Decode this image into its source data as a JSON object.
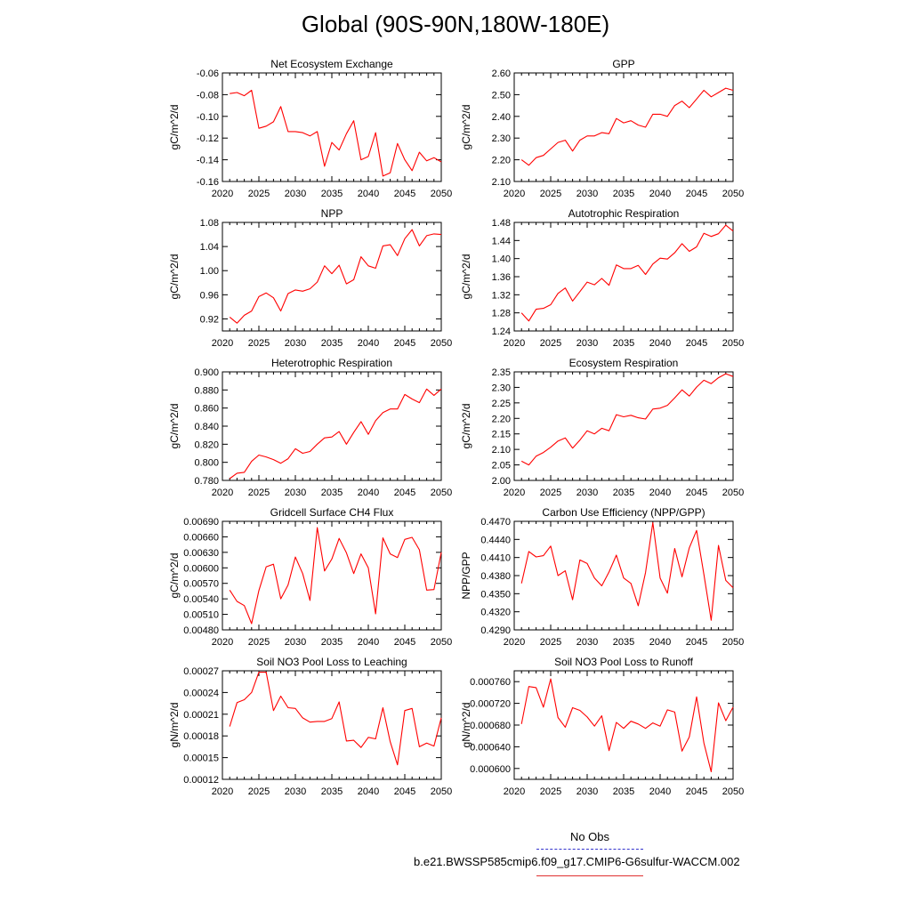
{
  "title": "Global (90S-90N,180W-180E)",
  "colors": {
    "series": "#ff0000",
    "axis": "#000000",
    "obs": "#3333cc"
  },
  "legend": {
    "obs_label": "No Obs",
    "model_label": "b.e21.BWSSP585cmip6.f09_g17.CMIP6-G6sulfur-WACCM.002"
  },
  "chart_data": [
    {
      "type": "line",
      "title": "Net Ecosystem Exchange",
      "ylabel": "gC/m^2/d",
      "xlabel": "",
      "xlim": [
        2020,
        2050
      ],
      "xticks": [
        "2020",
        "2025",
        "2030",
        "2035",
        "2040",
        "2045",
        "2050"
      ],
      "ylim": [
        -0.16,
        -0.06
      ],
      "yticks": [
        "-0.16",
        "-0.14",
        "-0.12",
        "-0.10",
        "-0.08",
        "-0.06"
      ],
      "x": [
        2021,
        2022,
        2023,
        2024,
        2025,
        2026,
        2027,
        2028,
        2029,
        2030,
        2031,
        2032,
        2033,
        2034,
        2035,
        2036,
        2037,
        2038,
        2039,
        2040,
        2041,
        2042,
        2043,
        2044,
        2045,
        2046,
        2047,
        2048,
        2049,
        2050
      ],
      "series": [
        {
          "values": [
            -0.079,
            -0.078,
            -0.081,
            -0.076,
            -0.111,
            -0.109,
            -0.105,
            -0.091,
            -0.114,
            -0.114,
            -0.115,
            -0.118,
            -0.114,
            -0.146,
            -0.124,
            -0.131,
            -0.116,
            -0.104,
            -0.14,
            -0.137,
            -0.115,
            -0.155,
            -0.152,
            -0.125,
            -0.14,
            -0.15,
            -0.133,
            -0.141,
            -0.138,
            -0.142
          ]
        }
      ]
    },
    {
      "type": "line",
      "title": "GPP",
      "ylabel": "gC/m^2/d",
      "xlabel": "",
      "xlim": [
        2020,
        2050
      ],
      "xticks": [
        "2020",
        "2025",
        "2030",
        "2035",
        "2040",
        "2045",
        "2050"
      ],
      "ylim": [
        2.1,
        2.6
      ],
      "yticks": [
        "2.10",
        "2.20",
        "2.30",
        "2.40",
        "2.50",
        "2.60"
      ],
      "x": [
        2021,
        2022,
        2023,
        2024,
        2025,
        2026,
        2027,
        2028,
        2029,
        2030,
        2031,
        2032,
        2033,
        2034,
        2035,
        2036,
        2037,
        2038,
        2039,
        2040,
        2041,
        2042,
        2043,
        2044,
        2045,
        2046,
        2047,
        2048,
        2049,
        2050
      ],
      "series": [
        {
          "values": [
            2.2,
            2.175,
            2.21,
            2.22,
            2.25,
            2.28,
            2.29,
            2.24,
            2.29,
            2.31,
            2.31,
            2.325,
            2.32,
            2.39,
            2.37,
            2.38,
            2.36,
            2.35,
            2.41,
            2.41,
            2.4,
            2.45,
            2.47,
            2.44,
            2.48,
            2.52,
            2.49,
            2.51,
            2.53,
            2.52
          ]
        }
      ]
    },
    {
      "type": "line",
      "title": "NPP",
      "ylabel": "gC/m^2/d",
      "xlabel": "",
      "xlim": [
        2020,
        2050
      ],
      "xticks": [
        "2020",
        "2025",
        "2030",
        "2035",
        "2040",
        "2045",
        "2050"
      ],
      "ylim": [
        0.9,
        1.08
      ],
      "yticks": [
        "0.92",
        "0.96",
        "1.00",
        "1.04",
        "1.08"
      ],
      "x": [
        2021,
        2022,
        2023,
        2024,
        2025,
        2026,
        2027,
        2028,
        2029,
        2030,
        2031,
        2032,
        2033,
        2034,
        2035,
        2036,
        2037,
        2038,
        2039,
        2040,
        2041,
        2042,
        2043,
        2044,
        2045,
        2046,
        2047,
        2048,
        2049,
        2050
      ],
      "series": [
        {
          "values": [
            0.923,
            0.913,
            0.926,
            0.933,
            0.957,
            0.963,
            0.955,
            0.933,
            0.962,
            0.968,
            0.966,
            0.97,
            0.981,
            1.008,
            0.995,
            1.009,
            0.978,
            0.985,
            1.023,
            1.008,
            1.004,
            1.041,
            1.043,
            1.025,
            1.053,
            1.068,
            1.041,
            1.058,
            1.061,
            1.06
          ]
        }
      ]
    },
    {
      "type": "line",
      "title": "Autotrophic Respiration",
      "ylabel": "gC/m^2/d",
      "xlabel": "",
      "xlim": [
        2020,
        2050
      ],
      "xticks": [
        "2020",
        "2025",
        "2030",
        "2035",
        "2040",
        "2045",
        "2050"
      ],
      "ylim": [
        1.24,
        1.48
      ],
      "yticks": [
        "1.24",
        "1.28",
        "1.32",
        "1.36",
        "1.40",
        "1.44",
        "1.48"
      ],
      "x": [
        2021,
        2022,
        2023,
        2024,
        2025,
        2026,
        2027,
        2028,
        2029,
        2030,
        2031,
        2032,
        2033,
        2034,
        2035,
        2036,
        2037,
        2038,
        2039,
        2040,
        2041,
        2042,
        2043,
        2044,
        2045,
        2046,
        2047,
        2048,
        2049,
        2050
      ],
      "series": [
        {
          "values": [
            1.28,
            1.262,
            1.288,
            1.29,
            1.298,
            1.323,
            1.335,
            1.306,
            1.327,
            1.348,
            1.342,
            1.356,
            1.341,
            1.386,
            1.378,
            1.378,
            1.385,
            1.365,
            1.388,
            1.401,
            1.399,
            1.413,
            1.433,
            1.416,
            1.426,
            1.456,
            1.449,
            1.455,
            1.474,
            1.461
          ]
        }
      ]
    },
    {
      "type": "line",
      "title": "Heterotrophic Respiration",
      "ylabel": "gC/m^2/d",
      "xlabel": "",
      "xlim": [
        2020,
        2050
      ],
      "xticks": [
        "2020",
        "2025",
        "2030",
        "2035",
        "2040",
        "2045",
        "2050"
      ],
      "ylim": [
        0.78,
        0.9
      ],
      "yticks": [
        "0.780",
        "0.800",
        "0.820",
        "0.840",
        "0.860",
        "0.880",
        "0.900"
      ],
      "x": [
        2021,
        2022,
        2023,
        2024,
        2025,
        2026,
        2027,
        2028,
        2029,
        2030,
        2031,
        2032,
        2033,
        2034,
        2035,
        2036,
        2037,
        2038,
        2039,
        2040,
        2041,
        2042,
        2043,
        2044,
        2045,
        2046,
        2047,
        2048,
        2049,
        2050
      ],
      "series": [
        {
          "values": [
            0.782,
            0.788,
            0.789,
            0.801,
            0.808,
            0.806,
            0.803,
            0.799,
            0.804,
            0.815,
            0.81,
            0.812,
            0.82,
            0.827,
            0.828,
            0.834,
            0.82,
            0.833,
            0.845,
            0.831,
            0.846,
            0.855,
            0.859,
            0.859,
            0.875,
            0.87,
            0.866,
            0.881,
            0.874,
            0.881
          ]
        }
      ]
    },
    {
      "type": "line",
      "title": "Ecosystem Respiration",
      "ylabel": "gC/m^2/d",
      "xlabel": "",
      "xlim": [
        2020,
        2050
      ],
      "xticks": [
        "2020",
        "2025",
        "2030",
        "2035",
        "2040",
        "2045",
        "2050"
      ],
      "ylim": [
        2.0,
        2.35
      ],
      "yticks": [
        "2.00",
        "2.05",
        "2.10",
        "2.15",
        "2.20",
        "2.25",
        "2.30",
        "2.35"
      ],
      "x": [
        2021,
        2022,
        2023,
        2024,
        2025,
        2026,
        2027,
        2028,
        2029,
        2030,
        2031,
        2032,
        2033,
        2034,
        2035,
        2036,
        2037,
        2038,
        2039,
        2040,
        2041,
        2042,
        2043,
        2044,
        2045,
        2046,
        2047,
        2048,
        2049,
        2050
      ],
      "series": [
        {
          "values": [
            2.062,
            2.05,
            2.078,
            2.09,
            2.107,
            2.127,
            2.137,
            2.104,
            2.13,
            2.16,
            2.15,
            2.168,
            2.16,
            2.212,
            2.205,
            2.21,
            2.202,
            2.198,
            2.23,
            2.233,
            2.242,
            2.266,
            2.292,
            2.272,
            2.301,
            2.323,
            2.312,
            2.331,
            2.344,
            2.335
          ]
        }
      ]
    },
    {
      "type": "line",
      "title": "Gridcell Surface CH4 Flux",
      "ylabel": "gC/m^2/d",
      "xlabel": "",
      "xlim": [
        2020,
        2050
      ],
      "xticks": [
        "2020",
        "2025",
        "2030",
        "2035",
        "2040",
        "2045",
        "2050"
      ],
      "ylim": [
        0.0048,
        0.0069
      ],
      "yticks": [
        "0.00480",
        "0.00510",
        "0.00540",
        "0.00570",
        "0.00600",
        "0.00630",
        "0.00660",
        "0.00690"
      ],
      "x": [
        2021,
        2022,
        2023,
        2024,
        2025,
        2026,
        2027,
        2028,
        2029,
        2030,
        2031,
        2032,
        2033,
        2034,
        2035,
        2036,
        2037,
        2038,
        2039,
        2040,
        2041,
        2042,
        2043,
        2044,
        2045,
        2046,
        2047,
        2048,
        2049,
        2050
      ],
      "series": [
        {
          "values": [
            0.00557,
            0.00535,
            0.00527,
            0.00492,
            0.00556,
            0.00602,
            0.00607,
            0.0054,
            0.00567,
            0.00621,
            0.00589,
            0.00537,
            0.00678,
            0.00594,
            0.00617,
            0.00657,
            0.00629,
            0.00589,
            0.00627,
            0.006,
            0.00511,
            0.00658,
            0.00627,
            0.0062,
            0.00655,
            0.00659,
            0.00635,
            0.00557,
            0.00558,
            0.0063
          ]
        }
      ]
    },
    {
      "type": "line",
      "title": "Carbon Use Efficiency (NPP/GPP)",
      "ylabel": "NPP/GPP",
      "xlabel": "",
      "xlim": [
        2020,
        2050
      ],
      "xticks": [
        "2020",
        "2025",
        "2030",
        "2035",
        "2040",
        "2045",
        "2050"
      ],
      "ylim": [
        0.429,
        0.447
      ],
      "yticks": [
        "0.4290",
        "0.4320",
        "0.4350",
        "0.4380",
        "0.4410",
        "0.4440",
        "0.4470"
      ],
      "x": [
        2021,
        2022,
        2023,
        2024,
        2025,
        2026,
        2027,
        2028,
        2029,
        2030,
        2031,
        2032,
        2033,
        2034,
        2035,
        2036,
        2037,
        2038,
        2039,
        2040,
        2041,
        2042,
        2043,
        2044,
        2045,
        2046,
        2047,
        2048,
        2049,
        2050
      ],
      "series": [
        {
          "values": [
            0.4367,
            0.442,
            0.4411,
            0.4413,
            0.4429,
            0.438,
            0.4388,
            0.434,
            0.4406,
            0.44,
            0.4376,
            0.4363,
            0.4386,
            0.4414,
            0.4376,
            0.4367,
            0.433,
            0.4385,
            0.4468,
            0.4376,
            0.4351,
            0.4425,
            0.4378,
            0.4426,
            0.4455,
            0.4382,
            0.4306,
            0.443,
            0.4372,
            0.436
          ]
        }
      ]
    },
    {
      "type": "line",
      "title": "Soil NO3 Pool Loss to Leaching",
      "ylabel": "gN/m^2/d",
      "xlabel": "",
      "xlim": [
        2020,
        2050
      ],
      "xticks": [
        "2020",
        "2025",
        "2030",
        "2035",
        "2040",
        "2045",
        "2050"
      ],
      "ylim": [
        0.00012,
        0.00027
      ],
      "yticks": [
        "0.00012",
        "0.00015",
        "0.00018",
        "0.00021",
        "0.00024",
        "0.00027"
      ],
      "x": [
        2021,
        2022,
        2023,
        2024,
        2025,
        2026,
        2027,
        2028,
        2029,
        2030,
        2031,
        2032,
        2033,
        2034,
        2035,
        2036,
        2037,
        2038,
        2039,
        2040,
        2041,
        2042,
        2043,
        2044,
        2045,
        2046,
        2047,
        2048,
        2049,
        2050
      ],
      "series": [
        {
          "values": [
            0.000193,
            0.000226,
            0.00023,
            0.00024,
            0.000268,
            0.000268,
            0.000215,
            0.000235,
            0.000219,
            0.000218,
            0.000205,
            0.000199,
            0.0002,
            0.0002,
            0.000204,
            0.000227,
            0.000173,
            0.000174,
            0.000164,
            0.000178,
            0.000176,
            0.000219,
            0.000172,
            0.00014,
            0.000215,
            0.000218,
            0.000165,
            0.00017,
            0.000166,
            0.000205
          ]
        }
      ]
    },
    {
      "type": "line",
      "title": "Soil NO3 Pool Loss to Runoff",
      "ylabel": "gN/m^2/d",
      "xlabel": "",
      "xlim": [
        2020,
        2050
      ],
      "xticks": [
        "2020",
        "2025",
        "2030",
        "2035",
        "2040",
        "2045",
        "2050"
      ],
      "ylim": [
        0.00058,
        0.00078
      ],
      "yticks": [
        "0.000600",
        "0.000640",
        "0.000680",
        "0.000720",
        "0.000760"
      ],
      "x": [
        2021,
        2022,
        2023,
        2024,
        2025,
        2026,
        2027,
        2028,
        2029,
        2030,
        2031,
        2032,
        2033,
        2034,
        2035,
        2036,
        2037,
        2038,
        2039,
        2040,
        2041,
        2042,
        2043,
        2044,
        2045,
        2046,
        2047,
        2048,
        2049,
        2050
      ],
      "series": [
        {
          "values": [
            0.000682,
            0.000751,
            0.000749,
            0.000713,
            0.000765,
            0.000694,
            0.000676,
            0.000712,
            0.000707,
            0.000695,
            0.000678,
            0.000697,
            0.000633,
            0.000685,
            0.000674,
            0.000687,
            0.000682,
            0.000674,
            0.000684,
            0.000678,
            0.000708,
            0.000704,
            0.000632,
            0.000658,
            0.000732,
            0.000647,
            0.000594,
            0.000721,
            0.000688,
            0.000713
          ]
        }
      ]
    }
  ]
}
